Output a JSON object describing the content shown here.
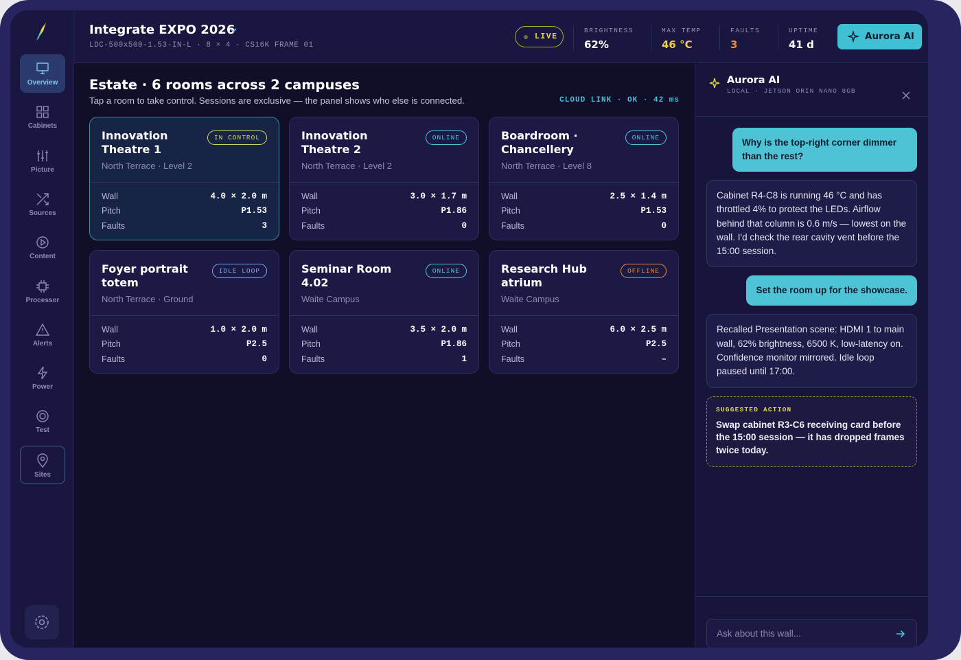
{
  "sidebar": {
    "nav": [
      "Overview",
      "Cabinets",
      "Picture",
      "Sources",
      "Content",
      "Processor",
      "Alerts",
      "Power",
      "Test",
      "Sites"
    ]
  },
  "header": {
    "title": "Integrate EXPO 2026",
    "subtitle": "LDC-500x500-1.53-IN-L · 8 × 4 · CS16K FRAME 01",
    "status": "LIVE",
    "stats": [
      {
        "label": "BRIGHTNESS",
        "value": "62%",
        "color": "#ffffff"
      },
      {
        "label": "MAX TEMP",
        "value": "46 °C",
        "color": "#f2c94c"
      },
      {
        "label": "FAULTS",
        "value": "3",
        "color": "#f08a3c"
      },
      {
        "label": "UPTIME",
        "value": "41 d",
        "color": "#ffffff"
      }
    ],
    "ai_button": "Aurora AI"
  },
  "estate": {
    "title": "Estate · 6 rooms across 2 campuses",
    "subtitle": "Tap a room to take control. Sessions are exclusive — the panel shows who else is connected.",
    "cloud_link": "CLOUD LINK · OK · 42 ms",
    "rooms": [
      {
        "name": "Innovation Theatre 1",
        "status": "IN CONTROL",
        "status_color": "#d8d860",
        "location": "North Terrace · Level 2",
        "specs": [
          {
            "label": "Wall",
            "value": "4.0 × 2.0 m"
          },
          {
            "label": "Pitch",
            "value": "P1.53"
          },
          {
            "label": "Faults",
            "value": "3"
          }
        ]
      },
      {
        "name": "Innovation Theatre 2",
        "status": "ONLINE",
        "status_color": "#55c6dc",
        "location": "North Terrace · Level 2",
        "specs": [
          {
            "label": "Wall",
            "value": "3.0 × 1.7 m"
          },
          {
            "label": "Pitch",
            "value": "P1.86"
          },
          {
            "label": "Faults",
            "value": "0"
          }
        ]
      },
      {
        "name": "Boardroom · Chancellery",
        "status": "ONLINE",
        "status_color": "#55c6dc",
        "location": "North Terrace · Level 8",
        "specs": [
          {
            "label": "Wall",
            "value": "2.5 × 1.4 m"
          },
          {
            "label": "Pitch",
            "value": "P1.53"
          },
          {
            "label": "Faults",
            "value": "0"
          }
        ]
      },
      {
        "name": "Foyer portrait totem",
        "status": "IDLE LOOP",
        "status_color": "#7fa8ec",
        "location": "North Terrace · Ground",
        "specs": [
          {
            "label": "Wall",
            "value": "1.0 × 2.0 m"
          },
          {
            "label": "Pitch",
            "value": "P2.5"
          },
          {
            "label": "Faults",
            "value": "0"
          }
        ]
      },
      {
        "name": "Seminar Room 4.02",
        "status": "ONLINE",
        "status_color": "#55c6dc",
        "location": "Waite Campus",
        "specs": [
          {
            "label": "Wall",
            "value": "3.5 × 2.0 m"
          },
          {
            "label": "Pitch",
            "value": "P1.86"
          },
          {
            "label": "Faults",
            "value": "1"
          }
        ]
      },
      {
        "name": "Research Hub atrium",
        "status": "OFFLINE",
        "status_color": "#f08a3c",
        "location": "Waite Campus",
        "specs": [
          {
            "label": "Wall",
            "value": "6.0 × 2.5 m"
          },
          {
            "label": "Pitch",
            "value": "P2.5"
          },
          {
            "label": "Faults",
            "value": "–"
          }
        ]
      }
    ]
  },
  "assistant": {
    "title": "Aurora AI",
    "subtitle": "LOCAL · JETSON ORIN NANO 8GB",
    "messages": [
      {
        "user": "Why is the top-right corner dimmer than the rest?"
      },
      {
        "ai": "Cabinet R4-C8 is running 46 °C and has throttled 4% to protect the LEDs. Airflow behind that column is 0.6 m/s — lowest on the wall. I'd check the rear cavity vent before the 15:00 session."
      },
      {
        "user": "Set the room up for the showcase."
      },
      {
        "ai": "Recalled Presentation scene: HDMI 1 to main wall, 62% brightness, 6500 K, low-latency on. Confidence monitor mirrored. Idle loop paused until 17:00."
      }
    ],
    "suggested": {
      "label": "SUGGESTED ACTION",
      "text": "Swap cabinet R3-C6 receiving card before the 15:00 session — it has dropped frames twice today."
    },
    "input_placeholder": "Ask about this wall..."
  }
}
